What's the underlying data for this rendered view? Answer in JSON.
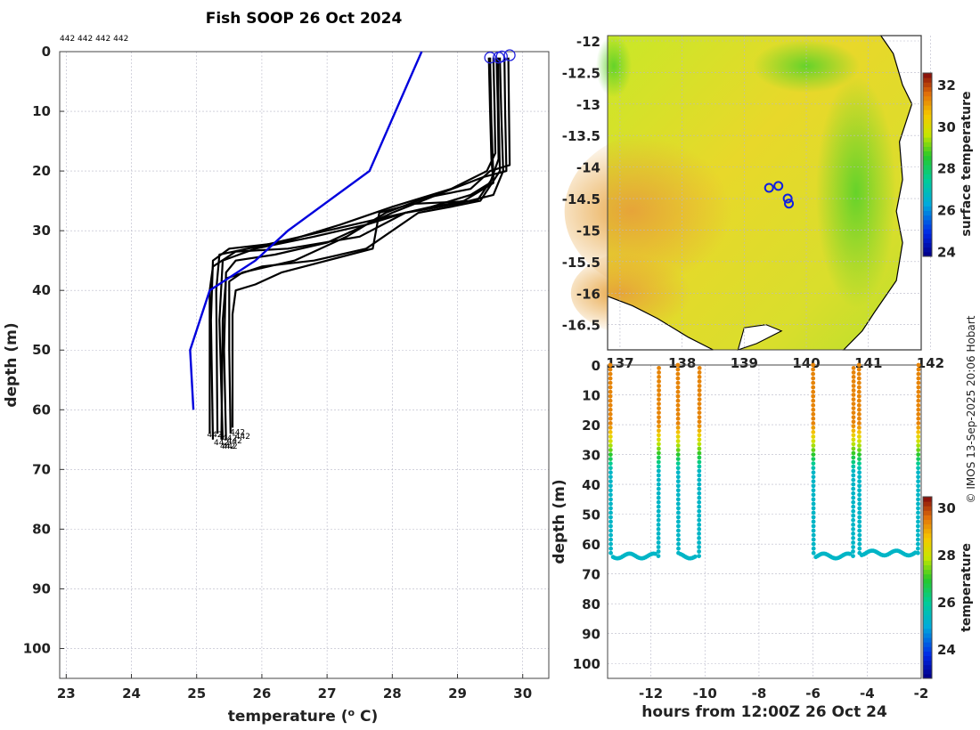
{
  "title": "Fish SOOP 26 Oct 2024",
  "top_label": "442 442 442 442",
  "credit": "© IMOS 13-Sep-2025 20:06 Hobart",
  "chart_data": [
    {
      "type": "line",
      "name": "profiles",
      "xlabel": "temperature (° C)",
      "xlabel_main": "temperature (",
      "xlabel_sup": "o",
      "xlabel_end": " C)",
      "ylabel": "depth (m)",
      "xlim": [
        22.9,
        30.4
      ],
      "ylim": [
        105,
        0
      ],
      "xticks": [
        23,
        24,
        25,
        26,
        27,
        28,
        29,
        30
      ],
      "yticks": [
        0,
        10,
        20,
        30,
        40,
        50,
        60,
        70,
        80,
        90,
        100
      ],
      "profile_end_label": "442",
      "climatology": {
        "color": "#0000dd",
        "points": [
          [
            28.45,
            0
          ],
          [
            28.25,
            5
          ],
          [
            28.05,
            10
          ],
          [
            27.65,
            20
          ],
          [
            26.4,
            30
          ],
          [
            25.9,
            35
          ],
          [
            25.2,
            40
          ],
          [
            24.9,
            50
          ],
          [
            24.95,
            60
          ]
        ]
      },
      "surface_markers": [
        [
          29.5,
          1
        ],
        [
          29.63,
          1
        ],
        [
          29.68,
          0.8
        ],
        [
          29.8,
          0.6
        ]
      ],
      "profiles": [
        [
          [
            29.48,
            1
          ],
          [
            29.5,
            10
          ],
          [
            29.52,
            18
          ],
          [
            29.55,
            22
          ],
          [
            29.1,
            25
          ],
          [
            28.2,
            27
          ],
          [
            27.5,
            31
          ],
          [
            26.4,
            33
          ],
          [
            25.6,
            33.5
          ],
          [
            25.25,
            36
          ],
          [
            25.2,
            40
          ],
          [
            25.2,
            55
          ],
          [
            25.2,
            64
          ]
        ],
        [
          [
            29.55,
            1
          ],
          [
            29.57,
            10
          ],
          [
            29.58,
            17
          ],
          [
            29.45,
            20
          ],
          [
            28.9,
            23
          ],
          [
            28.0,
            26
          ],
          [
            27.2,
            29
          ],
          [
            26.3,
            32
          ],
          [
            25.5,
            33
          ],
          [
            25.25,
            35
          ],
          [
            25.22,
            45
          ],
          [
            25.25,
            65
          ]
        ],
        [
          [
            29.6,
            1
          ],
          [
            29.62,
            10
          ],
          [
            29.63,
            18
          ],
          [
            29.5,
            22
          ],
          [
            29.2,
            24
          ],
          [
            28.6,
            26
          ],
          [
            27.8,
            28
          ],
          [
            27.0,
            30
          ],
          [
            26.0,
            32.5
          ],
          [
            25.35,
            34
          ],
          [
            25.3,
            40
          ],
          [
            25.32,
            64
          ]
        ],
        [
          [
            29.65,
            1
          ],
          [
            29.67,
            10
          ],
          [
            29.7,
            20
          ],
          [
            29.55,
            24
          ],
          [
            29.0,
            25.5
          ],
          [
            28.2,
            27
          ],
          [
            27.6,
            29
          ],
          [
            26.8,
            31
          ],
          [
            25.9,
            33
          ],
          [
            25.4,
            35
          ],
          [
            25.35,
            45
          ],
          [
            25.4,
            65
          ]
        ],
        [
          [
            29.72,
            1
          ],
          [
            29.73,
            10
          ],
          [
            29.75,
            20
          ],
          [
            29.4,
            21
          ],
          [
            28.8,
            23.5
          ],
          [
            28.0,
            27
          ],
          [
            27.0,
            32
          ],
          [
            26.2,
            34
          ],
          [
            25.6,
            35
          ],
          [
            25.45,
            37
          ],
          [
            25.42,
            50
          ],
          [
            25.45,
            65
          ]
        ],
        [
          [
            29.78,
            1
          ],
          [
            29.79,
            10
          ],
          [
            29.8,
            19
          ],
          [
            29.5,
            20
          ],
          [
            29.2,
            23
          ],
          [
            28.5,
            24.5
          ],
          [
            27.9,
            27
          ],
          [
            27.3,
            31
          ],
          [
            26.5,
            35
          ],
          [
            25.7,
            37
          ],
          [
            25.5,
            38.5
          ],
          [
            25.5,
            50
          ],
          [
            25.52,
            64
          ]
        ],
        [
          [
            29.5,
            1
          ],
          [
            29.52,
            12
          ],
          [
            29.55,
            21
          ],
          [
            29.3,
            25
          ],
          [
            28.3,
            25.5
          ],
          [
            27.8,
            27
          ],
          [
            27.7,
            33
          ],
          [
            27.0,
            35
          ],
          [
            26.3,
            37
          ],
          [
            25.9,
            39
          ],
          [
            25.6,
            40
          ],
          [
            25.55,
            44
          ],
          [
            25.55,
            63
          ]
        ],
        [
          [
            29.62,
            1
          ],
          [
            29.63,
            10
          ],
          [
            29.65,
            20
          ],
          [
            29.35,
            25
          ],
          [
            28.9,
            26
          ],
          [
            28.4,
            27
          ],
          [
            27.6,
            33
          ],
          [
            26.8,
            35
          ],
          [
            26.0,
            36
          ],
          [
            25.45,
            38
          ],
          [
            25.4,
            45
          ],
          [
            25.38,
            65
          ]
        ]
      ]
    },
    {
      "type": "heatmap",
      "name": "sst-map",
      "colorbar_label": "surface temperature",
      "ylim": [
        -16.9,
        -12
      ],
      "xlim": [
        136.8,
        141.85
      ],
      "yticks": [
        -12,
        -12.5,
        -13,
        -13.5,
        -14,
        -14.5,
        -15,
        -15.5,
        -16,
        -16.5
      ],
      "ytick_labels": [
        "-12",
        "-12.5",
        "-13",
        "-13.5",
        "-14",
        "-14.5",
        "-15",
        "-15.5",
        "-16",
        "-16.5"
      ],
      "xticks": [
        137,
        138,
        139,
        140,
        141,
        142
      ],
      "xtick_labels": [
        "137",
        "138",
        "139",
        "140",
        "141",
        "142"
      ],
      "colorbar_range": [
        23.8,
        32.6
      ],
      "colorbar_ticks": [
        24,
        26,
        28,
        30,
        32
      ],
      "cast_locations": [
        [
          139.4,
          -14.33
        ],
        [
          139.55,
          -14.3
        ],
        [
          139.7,
          -14.5
        ],
        [
          139.72,
          -14.58
        ]
      ]
    },
    {
      "type": "scatter",
      "name": "depth-time-section",
      "xlabel": "hours from 12:00Z 26 Oct 24",
      "ylabel": "depth (m)",
      "colorbar_label": "temperature",
      "xlim": [
        -13.6,
        -2
      ],
      "ylim": [
        105,
        0
      ],
      "xticks": [
        -12,
        -10,
        -8,
        -6,
        -4,
        -2
      ],
      "yticks": [
        0,
        10,
        20,
        30,
        40,
        50,
        60,
        70,
        80,
        90,
        100
      ],
      "colorbar_range": [
        22.8,
        30.5
      ],
      "colorbar_ticks": [
        24,
        26,
        28,
        30
      ],
      "casts": [
        {
          "down": -13.5,
          "bottom_start": -13.4,
          "bottom_end": -11.8,
          "up": -11.7,
          "max_depth": 64
        },
        {
          "down": -11.0,
          "bottom_start": -10.9,
          "bottom_end": -10.3,
          "up": -10.2,
          "max_depth": 64
        },
        {
          "down": -6.0,
          "bottom_start": -5.9,
          "bottom_end": -4.6,
          "up": -4.5,
          "max_depth": 64
        },
        {
          "down": -4.3,
          "bottom_start": -4.2,
          "bottom_end": -2.2,
          "up": -2.1,
          "max_depth": 63
        }
      ]
    }
  ]
}
